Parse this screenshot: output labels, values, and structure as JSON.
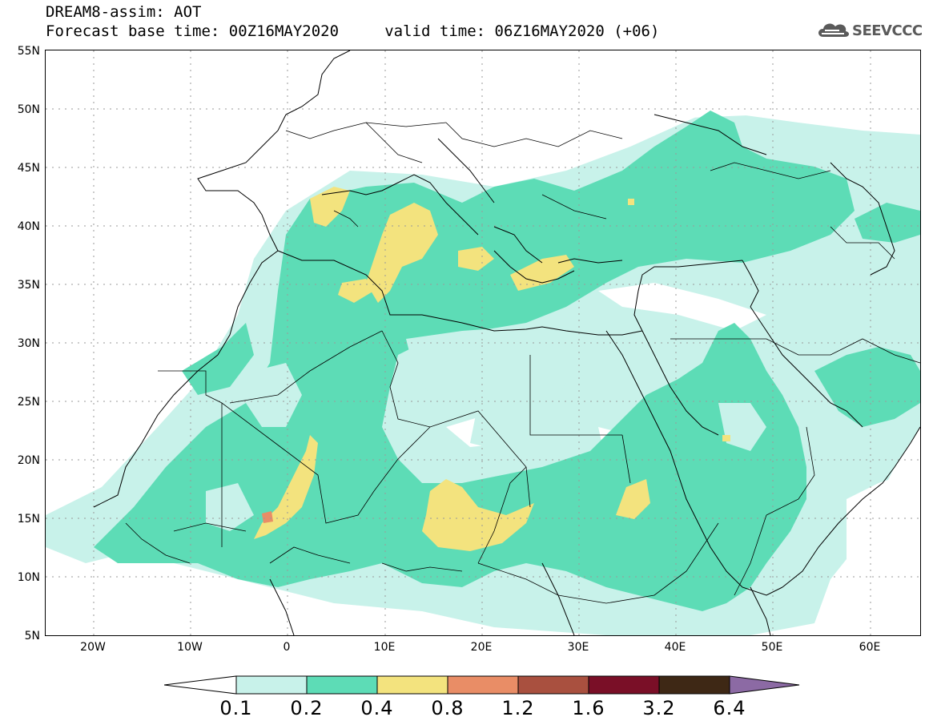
{
  "header": {
    "title_line1": "DREAM8-assim: AOT",
    "title_line2": "Forecast base time: 00Z16MAY2020     valid time: 06Z16MAY2020 (+06)"
  },
  "logo": {
    "text": "SEEVCCC",
    "icon": "cloud-icon"
  },
  "map": {
    "latitude_labels": [
      "55N",
      "50N",
      "45N",
      "40N",
      "35N",
      "30N",
      "25N",
      "20N",
      "15N",
      "10N",
      "5N"
    ],
    "longitude_labels": [
      "20W",
      "10W",
      "0",
      "10E",
      "20E",
      "30E",
      "40E",
      "50E",
      "60E"
    ],
    "lat_range": [
      5,
      55
    ],
    "lon_range": [
      -25,
      65
    ],
    "gridlines": "dotted",
    "variable": "AOT"
  },
  "legend": {
    "levels": [
      "0.1",
      "0.2",
      "0.4",
      "0.8",
      "1.2",
      "1.6",
      "3.2",
      "6.4"
    ],
    "colors": [
      "#ffffff",
      "#c8f2ea",
      "#5ddcb6",
      "#f3e37e",
      "#e98d66",
      "#a9503f",
      "#7a0f27",
      "#3e2815",
      "#8c6aa4"
    ]
  },
  "colors": {
    "aot_low": "#c8f2ea",
    "aot_mid": "#5ddcb6",
    "aot_high": "#f3e37e",
    "aot_very_high": "#e98d66",
    "coastline": "#000000",
    "grid": "#9a9a9a"
  }
}
